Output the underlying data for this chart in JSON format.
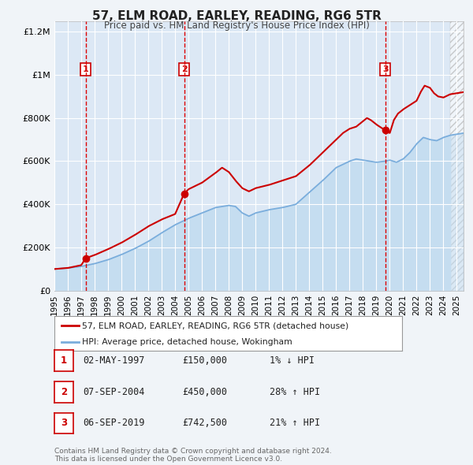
{
  "title": "57, ELM ROAD, EARLEY, READING, RG6 5TR",
  "subtitle": "Price paid vs. HM Land Registry's House Price Index (HPI)",
  "background_color": "#f0f4f8",
  "plot_bg_color": "#dce8f5",
  "grid_color": "#ffffff",
  "ylim": [
    0,
    1250000
  ],
  "xlim_start": 1995.0,
  "xlim_end": 2025.5,
  "yticks": [
    0,
    200000,
    400000,
    600000,
    800000,
    1000000,
    1200000
  ],
  "ytick_labels": [
    "£0",
    "£200K",
    "£400K",
    "£600K",
    "£800K",
    "£1M",
    "£1.2M"
  ],
  "xtick_years": [
    1995,
    1996,
    1997,
    1998,
    1999,
    2000,
    2001,
    2002,
    2003,
    2004,
    2005,
    2006,
    2007,
    2008,
    2009,
    2010,
    2011,
    2012,
    2013,
    2014,
    2015,
    2016,
    2017,
    2018,
    2019,
    2020,
    2021,
    2022,
    2023,
    2024,
    2025
  ],
  "sale_color": "#cc0000",
  "hpi_color": "#7aaddc",
  "hpi_fill_color": "#c5ddf0",
  "sale_label": "57, ELM ROAD, EARLEY, READING, RG6 5TR (detached house)",
  "hpi_label": "HPI: Average price, detached house, Wokingham",
  "transactions": [
    {
      "num": 1,
      "date": "02-MAY-1997",
      "year": 1997.33,
      "price": 150000,
      "pct": "1%",
      "dir": "↓"
    },
    {
      "num": 2,
      "date": "07-SEP-2004",
      "year": 2004.67,
      "price": 450000,
      "pct": "28%",
      "dir": "↑"
    },
    {
      "num": 3,
      "date": "06-SEP-2019",
      "year": 2019.67,
      "price": 742500,
      "pct": "21%",
      "dir": "↑"
    }
  ],
  "footer_text": "Contains HM Land Registry data © Crown copyright and database right 2024.\nThis data is licensed under the Open Government Licence v3.0.",
  "hatch_start": 2024.5,
  "chart_data_end": 2024.5
}
